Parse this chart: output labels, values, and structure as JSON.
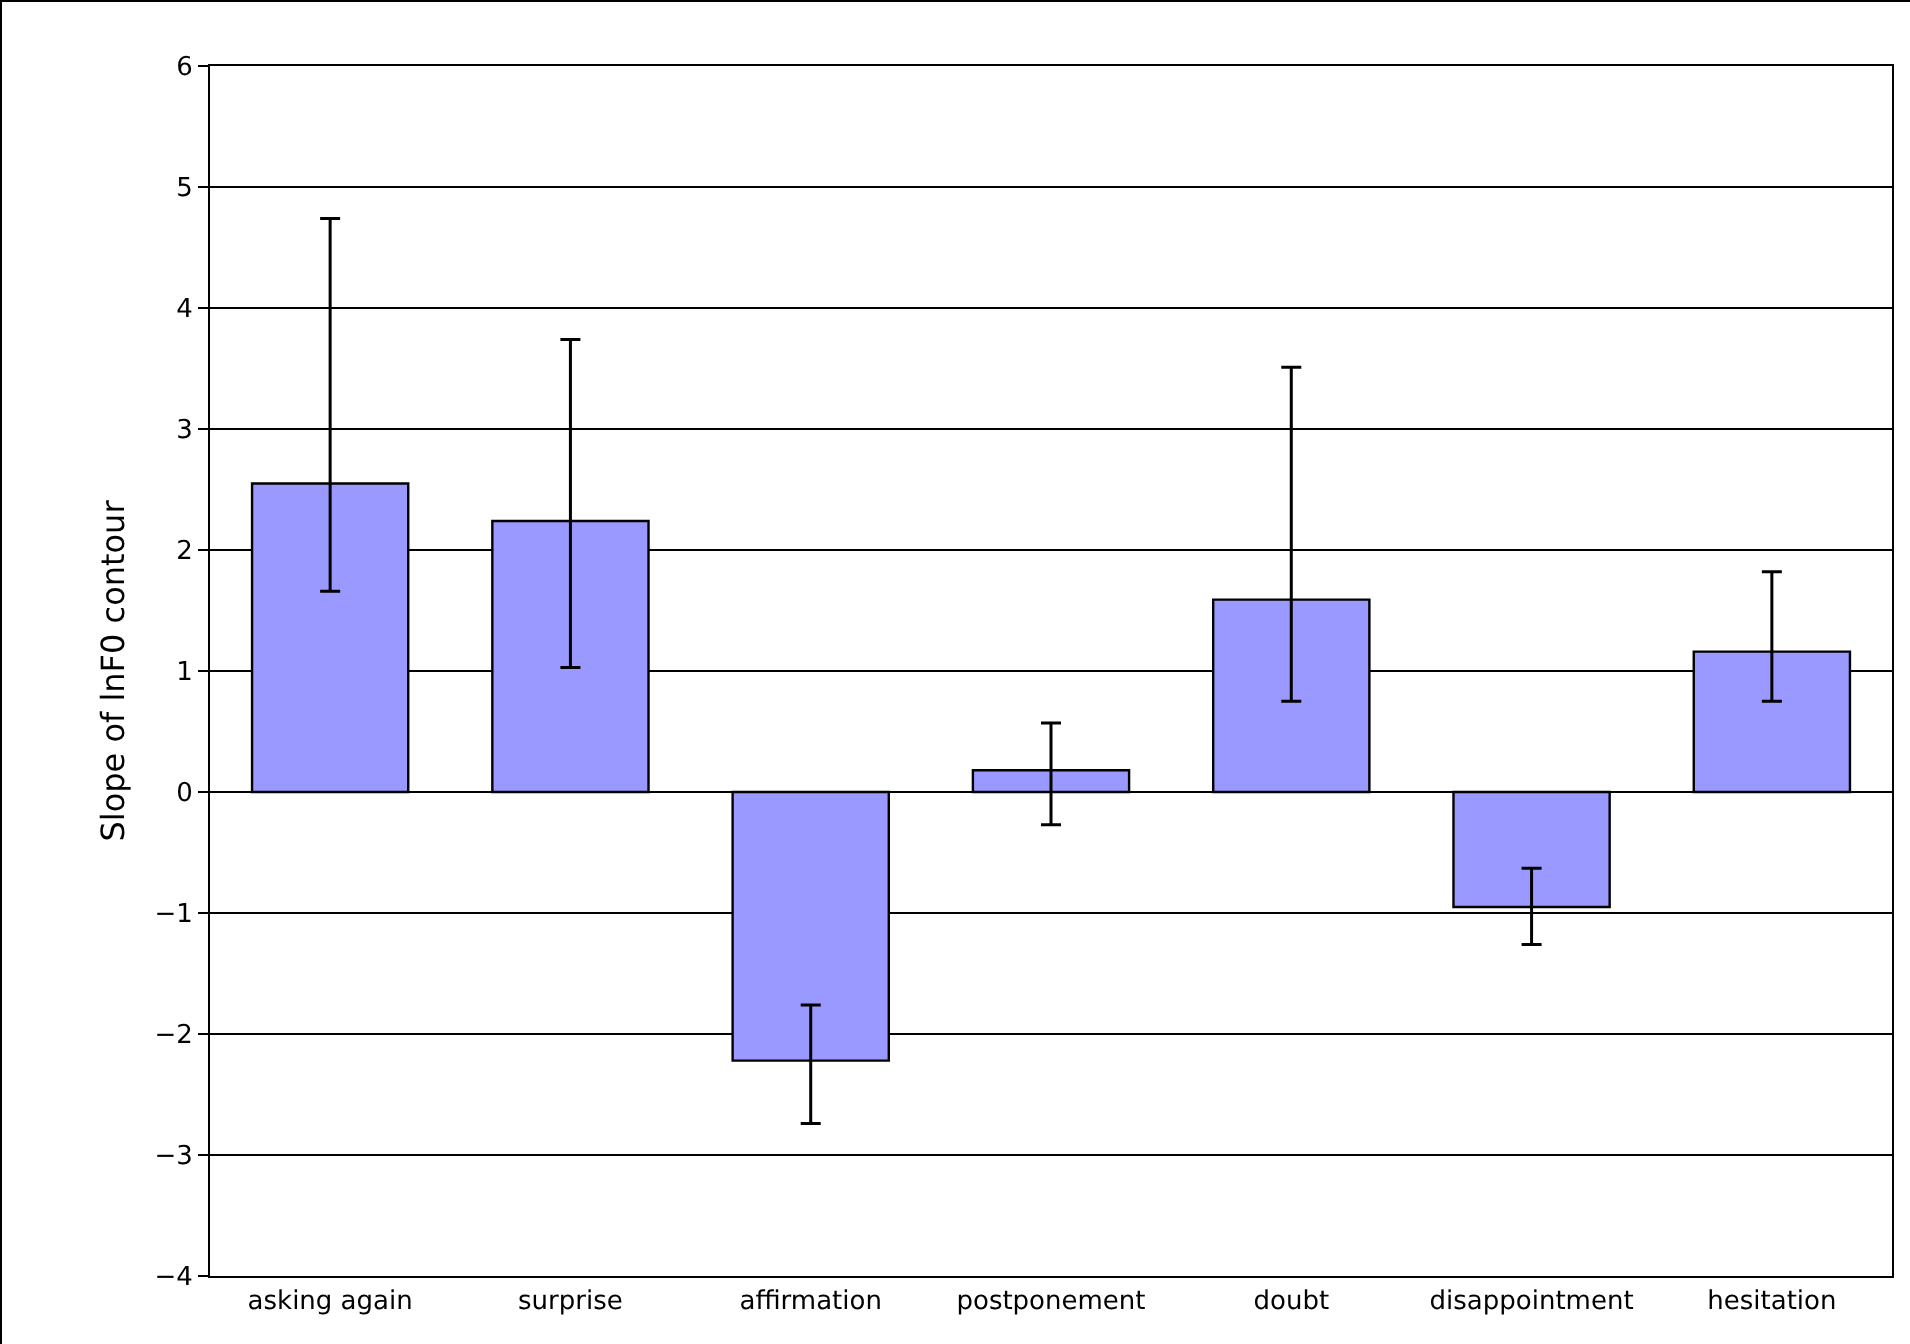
{
  "chart_data": {
    "type": "bar",
    "ylabel": "Slope of lnF0 contour",
    "categories": [
      "asking again",
      "surprise",
      "affirmation",
      "postponement",
      "doubt",
      "disappointment",
      "hesitation"
    ],
    "values": [
      2.55,
      2.24,
      -2.22,
      0.18,
      1.59,
      -0.95,
      1.16
    ],
    "errors": [
      [
        1.66,
        4.74
      ],
      [
        1.03,
        3.74
      ],
      [
        -2.74,
        -1.76
      ],
      [
        -0.27,
        0.57
      ],
      [
        0.75,
        3.51
      ],
      [
        -1.26,
        -0.63
      ],
      [
        0.75,
        1.82
      ]
    ],
    "color": "#9999ff",
    "ylim": [
      -4,
      6
    ],
    "yticks": [
      -4,
      -3,
      -2,
      -1,
      0,
      1,
      2,
      3,
      4,
      5,
      6
    ],
    "grid": "y"
  }
}
